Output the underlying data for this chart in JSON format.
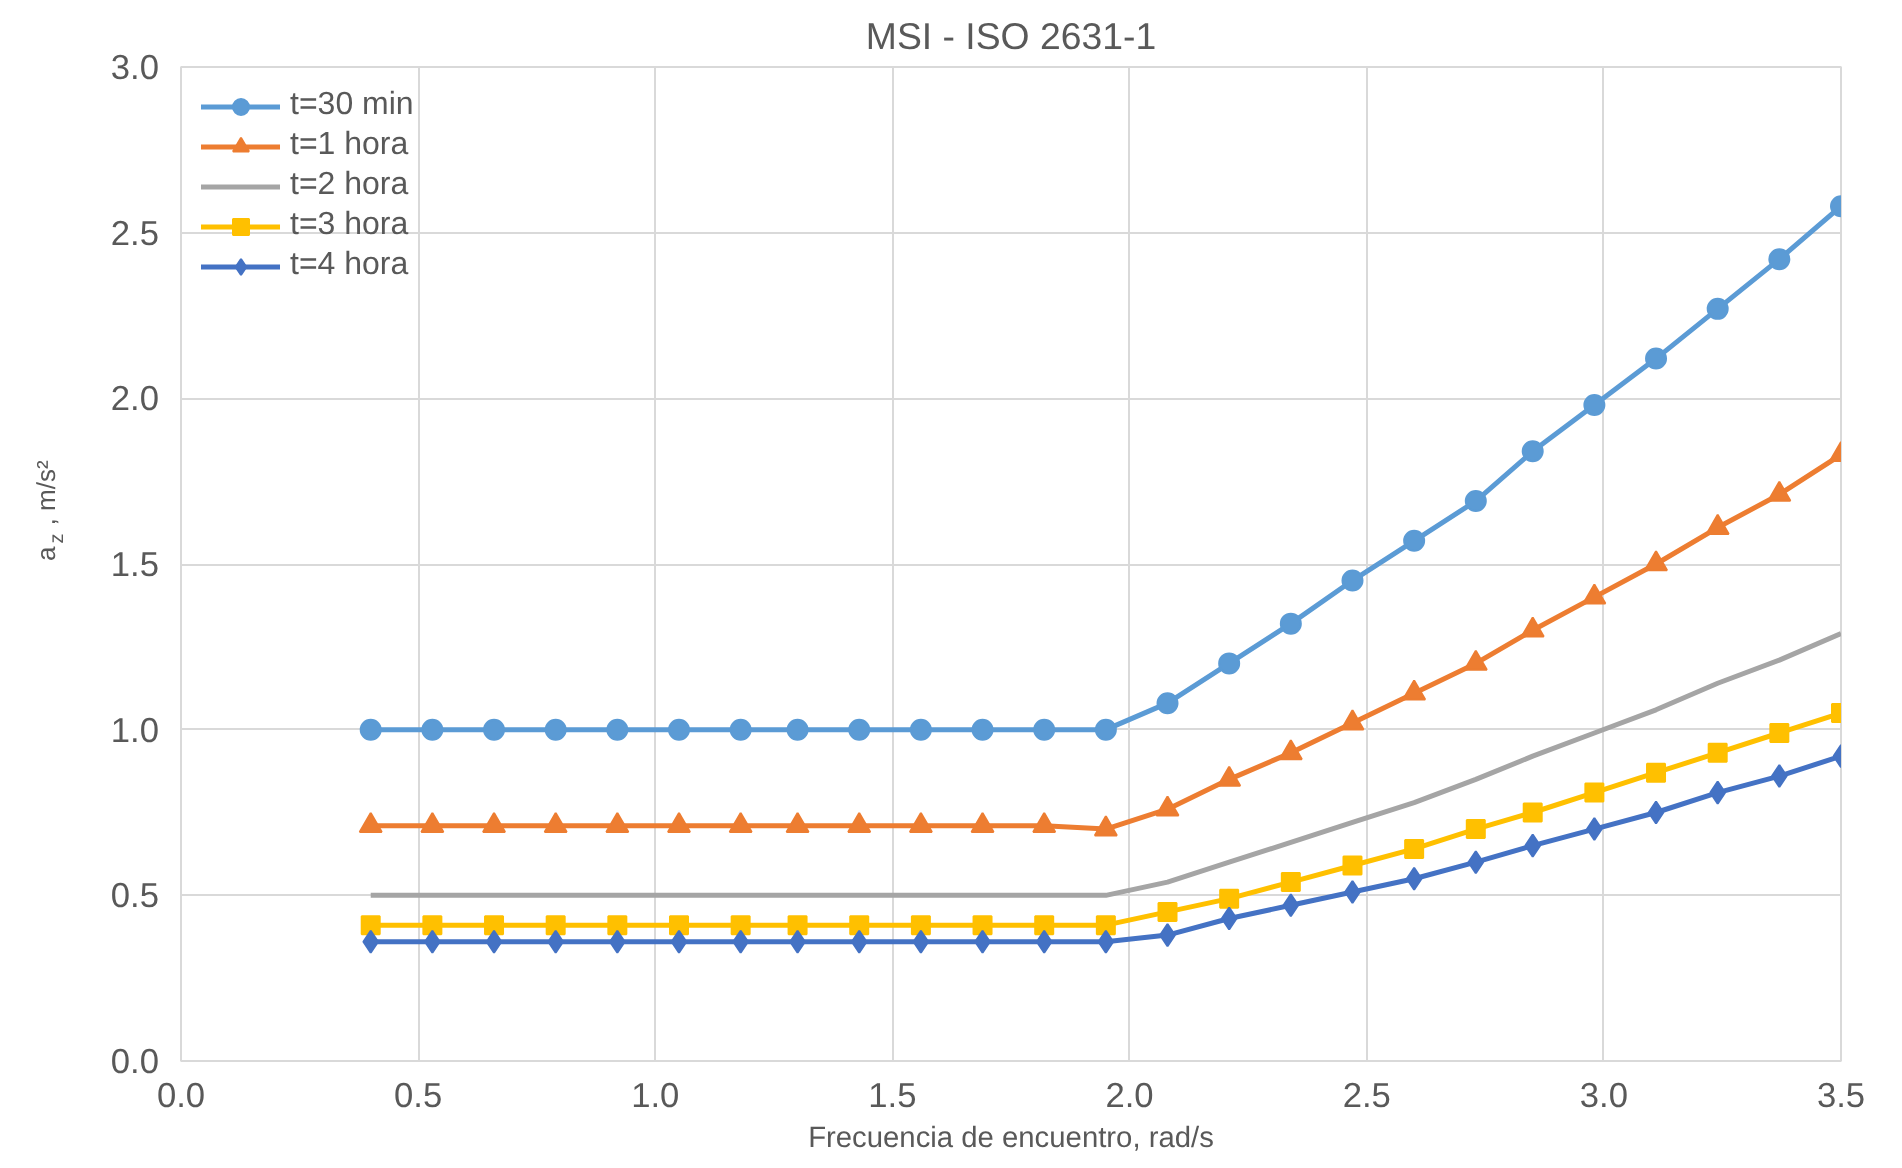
{
  "chart_data": {
    "type": "line",
    "title": "MSI - ISO 2631-1",
    "xlabel": "Frecuencia de encuentro, rad/s",
    "ylabel": "a$_{z}$ , m/s²",
    "x": [
      0.4,
      0.53,
      0.66,
      0.79,
      0.92,
      1.05,
      1.18,
      1.3,
      1.43,
      1.56,
      1.69,
      1.82,
      1.95,
      2.08,
      2.21,
      2.34,
      2.47,
      2.6,
      2.73,
      2.85,
      2.98,
      3.11,
      3.24,
      3.37,
      3.5
    ],
    "series": [
      {
        "name": "t=30 min",
        "color": "#5b9bd5",
        "marker": "circle",
        "values": [
          1.0,
          1.0,
          1.0,
          1.0,
          1.0,
          1.0,
          1.0,
          1.0,
          1.0,
          1.0,
          1.0,
          1.0,
          1.0,
          1.08,
          1.2,
          1.32,
          1.45,
          1.57,
          1.69,
          1.84,
          1.98,
          2.12,
          2.27,
          2.42,
          2.58
        ]
      },
      {
        "name": "t=1 hora",
        "color": "#ed7d31",
        "marker": "triangle",
        "values": [
          0.71,
          0.71,
          0.71,
          0.71,
          0.71,
          0.71,
          0.71,
          0.71,
          0.71,
          0.71,
          0.71,
          0.71,
          0.7,
          0.76,
          0.85,
          0.93,
          1.02,
          1.11,
          1.2,
          1.3,
          1.4,
          1.5,
          1.61,
          1.71,
          1.83
        ]
      },
      {
        "name": "t=2 hora",
        "color": "#a5a5a5",
        "marker": "none",
        "values": [
          0.5,
          0.5,
          0.5,
          0.5,
          0.5,
          0.5,
          0.5,
          0.5,
          0.5,
          0.5,
          0.5,
          0.5,
          0.5,
          0.54,
          0.6,
          0.66,
          0.72,
          0.78,
          0.85,
          0.92,
          0.99,
          1.06,
          1.14,
          1.21,
          1.29
        ]
      },
      {
        "name": "t=3 hora",
        "color": "#ffc000",
        "marker": "square",
        "values": [
          0.41,
          0.41,
          0.41,
          0.41,
          0.41,
          0.41,
          0.41,
          0.41,
          0.41,
          0.41,
          0.41,
          0.41,
          0.41,
          0.45,
          0.49,
          0.54,
          0.59,
          0.64,
          0.7,
          0.75,
          0.81,
          0.87,
          0.93,
          0.99,
          1.05
        ]
      },
      {
        "name": "t=4 hora",
        "color": "#4472c4",
        "marker": "diamond",
        "values": [
          0.36,
          0.36,
          0.36,
          0.36,
          0.36,
          0.36,
          0.36,
          0.36,
          0.36,
          0.36,
          0.36,
          0.36,
          0.36,
          0.38,
          0.43,
          0.47,
          0.51,
          0.55,
          0.6,
          0.65,
          0.7,
          0.75,
          0.81,
          0.86,
          0.92
        ]
      }
    ],
    "xlim": [
      0,
      3.5
    ],
    "ylim": [
      0,
      3
    ],
    "xticks": [
      {
        "value": 0,
        "label": "0.0"
      },
      0.5,
      {
        "value": 1,
        "label": "1.0"
      },
      1.5,
      {
        "value": 2,
        "label": "2.0"
      },
      2.5,
      {
        "value": 3,
        "label": "3.0"
      },
      3.5
    ],
    "yticks": [
      {
        "value": 0,
        "label": "0.0"
      },
      0.5,
      {
        "value": 1,
        "label": "1.0"
      },
      1.5,
      {
        "value": 2,
        "label": "2.0"
      },
      2.5,
      {
        "value": 3,
        "label": "3.0"
      }
    ],
    "grid": true,
    "legend": "top left",
    "line_style": "solid"
  }
}
